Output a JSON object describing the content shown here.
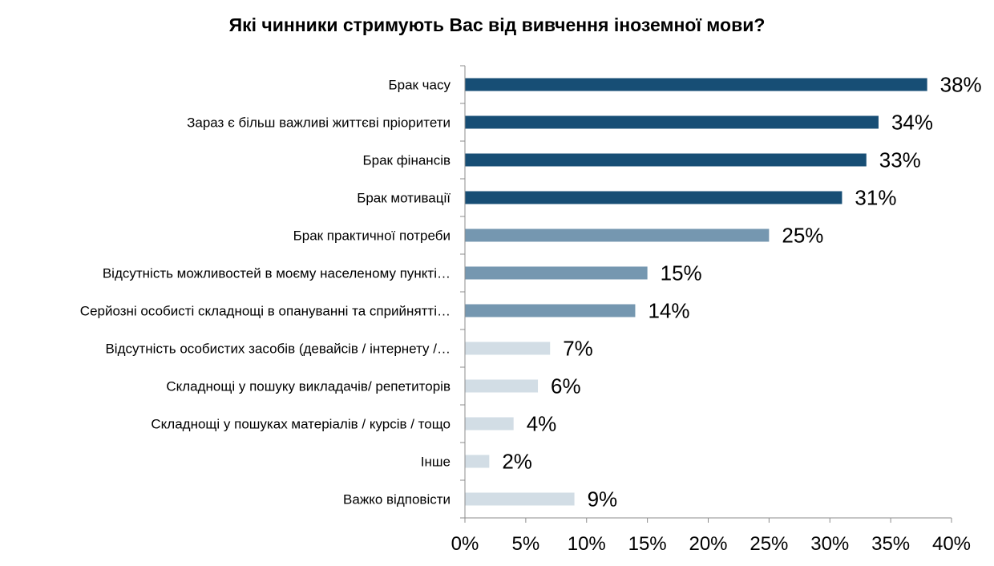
{
  "chart_data": {
    "type": "bar",
    "orientation": "horizontal",
    "title": "Які чинники стримують Вас від вивчення іноземної мови?",
    "categories": [
      "Брак часу",
      "Зараз є більш важливі життєві пріоритети",
      "Брак фінансів",
      "Брак мотивації",
      "Брак практичної потреби",
      "Відсутність можливостей в моєму населеному пункті…",
      "Серйозні особисті складнощі в опануванні та сприйнятті…",
      "Відсутність особистих засобів (девайсів / інтернету /…",
      "Складнощі у пошуку викладачів/ репетиторів",
      "Складнощі у пошуках матеріалів / курсів / тощо",
      "Інше",
      "Важко відповісти"
    ],
    "values": [
      38,
      34,
      33,
      31,
      25,
      15,
      14,
      7,
      6,
      4,
      2,
      9
    ],
    "value_labels": [
      "38%",
      "34%",
      "33%",
      "31%",
      "25%",
      "15%",
      "14%",
      "7%",
      "6%",
      "4%",
      "2%",
      "9%"
    ],
    "bar_colors": [
      "#174e75",
      "#174e75",
      "#174e75",
      "#174e75",
      "#7597b0",
      "#7597b0",
      "#7597b0",
      "#d2dde5",
      "#d2dde5",
      "#d2dde5",
      "#d2dde5",
      "#d2dde5"
    ],
    "xlim": [
      0,
      40
    ],
    "xticks": [
      0,
      5,
      10,
      15,
      20,
      25,
      30,
      35,
      40
    ],
    "xtick_labels": [
      "0%",
      "5%",
      "10%",
      "15%",
      "20%",
      "25%",
      "30%",
      "35%",
      "40%"
    ],
    "xlabel": "",
    "ylabel": "",
    "grid": false,
    "legend": "none"
  }
}
